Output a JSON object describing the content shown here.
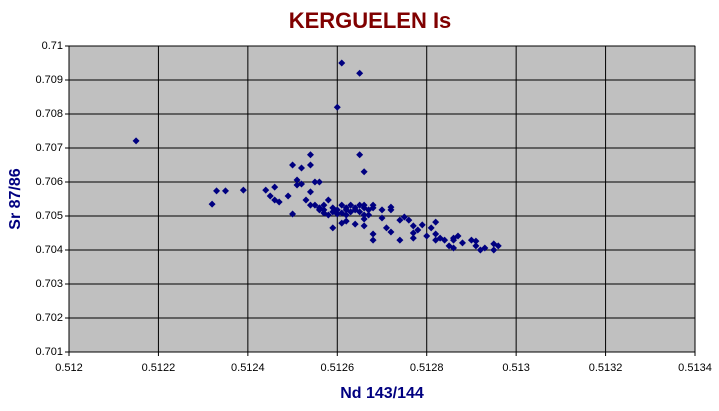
{
  "chart_data": {
    "type": "scatter",
    "title": "KERGUELEN Is",
    "x_label": "Nd 143/144",
    "y_label": "Sr 87/86",
    "color": "#000080",
    "grid": true,
    "plot_background": "#c0c0c0",
    "xlim": [
      0.512,
      0.5134
    ],
    "xticks": [
      0.512,
      0.5122,
      0.5124,
      0.5126,
      0.5128,
      0.513,
      0.5132,
      0.5134
    ],
    "ylim": [
      0.701,
      0.71
    ],
    "yticks": [
      0.701,
      0.702,
      0.703,
      0.704,
      0.705,
      0.706,
      0.707,
      0.708,
      0.709,
      0.71
    ],
    "x": [
      0.51215,
      0.51261,
      0.51265,
      0.5126,
      0.51265,
      0.51266,
      0.51254,
      0.5125,
      0.51254,
      0.51239,
      0.51233,
      0.51235,
      0.51232,
      0.51244,
      0.51246,
      0.51245,
      0.51246,
      0.51247,
      0.51249,
      0.5125,
      0.51251,
      0.51252,
      0.51251,
      0.51252,
      0.51254,
      0.51255,
      0.51256,
      0.51253,
      0.51254,
      0.51255,
      0.51256,
      0.51256,
      0.51257,
      0.51257,
      0.51257,
      0.51258,
      0.51258,
      0.51259,
      0.51259,
      0.5126,
      0.5126,
      0.51261,
      0.51261,
      0.51262,
      0.51262,
      0.51262,
      0.51263,
      0.51263,
      0.51264,
      0.51264,
      0.51265,
      0.51265,
      0.51266,
      0.51266,
      0.51266,
      0.51267,
      0.51267,
      0.51268,
      0.51259,
      0.51261,
      0.51262,
      0.51264,
      0.51266,
      0.51266,
      0.51268,
      0.51268,
      0.51268,
      0.5127,
      0.5127,
      0.51272,
      0.51271,
      0.51272,
      0.51274,
      0.51272,
      0.51274,
      0.51275,
      0.51276,
      0.51277,
      0.51277,
      0.51277,
      0.51278,
      0.51279,
      0.51281,
      0.5128,
      0.51282,
      0.51283,
      0.51282,
      0.51282,
      0.51284,
      0.51285,
      0.51286,
      0.51286,
      0.51288,
      0.51287,
      0.51286,
      0.5129,
      0.51291,
      0.51291,
      0.51292,
      0.51293,
      0.51295,
      0.51295,
      0.51296
    ],
    "values": [
      0.70721,
      0.7095,
      0.7092,
      0.7082,
      0.7068,
      0.7063,
      0.7068,
      0.7065,
      0.7065,
      0.70576,
      0.70574,
      0.70574,
      0.70535,
      0.70576,
      0.70585,
      0.70559,
      0.70547,
      0.70541,
      0.70559,
      0.70506,
      0.70606,
      0.70641,
      0.70591,
      0.70594,
      0.70571,
      0.706,
      0.706,
      0.70547,
      0.70532,
      0.70532,
      0.70518,
      0.70524,
      0.70509,
      0.70532,
      0.70518,
      0.70503,
      0.70547,
      0.70512,
      0.70524,
      0.70506,
      0.70518,
      0.70532,
      0.70509,
      0.70524,
      0.70518,
      0.70503,
      0.70532,
      0.70512,
      0.70524,
      0.70518,
      0.70532,
      0.70512,
      0.70524,
      0.70503,
      0.70532,
      0.70518,
      0.70503,
      0.70532,
      0.70465,
      0.70479,
      0.70485,
      0.70476,
      0.70471,
      0.70491,
      0.70447,
      0.70429,
      0.70524,
      0.70518,
      0.70494,
      0.70518,
      0.70465,
      0.70453,
      0.70429,
      0.70526,
      0.70488,
      0.70497,
      0.70488,
      0.70471,
      0.7045,
      0.70435,
      0.70459,
      0.70474,
      0.70465,
      0.70441,
      0.70482,
      0.70435,
      0.70447,
      0.70429,
      0.70429,
      0.70412,
      0.70406,
      0.70429,
      0.70421,
      0.70441,
      0.70435,
      0.70429,
      0.70426,
      0.70412,
      0.704,
      0.70406,
      0.704,
      0.70418,
      0.70412
    ]
  }
}
